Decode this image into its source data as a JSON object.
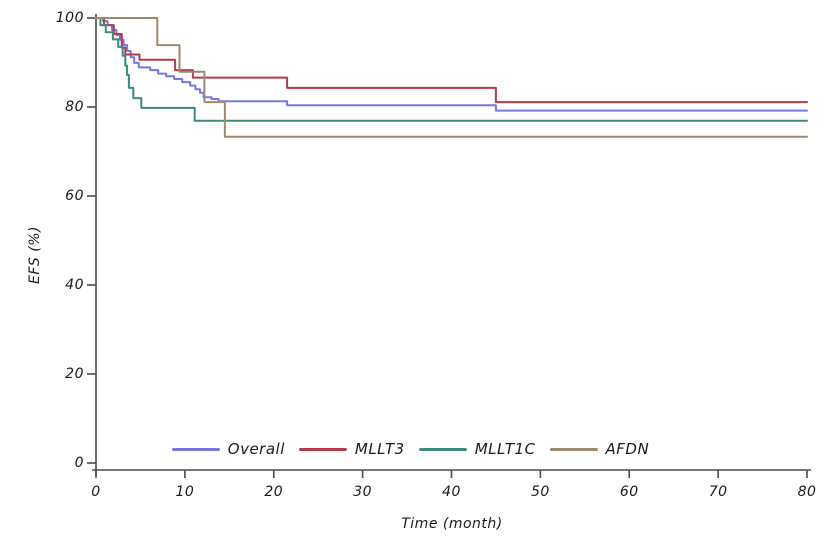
{
  "chart_data": {
    "type": "line",
    "subtype": "kaplan-meier-step",
    "title": "",
    "xlabel": "Time (month)",
    "ylabel": "EFS (%)",
    "xlim": [
      0,
      80
    ],
    "ylim": [
      0,
      100
    ],
    "xticks": [
      0,
      10,
      20,
      30,
      40,
      50,
      60,
      70,
      80
    ],
    "yticks": [
      0,
      20,
      40,
      60,
      80,
      100
    ],
    "grid": false,
    "legend_position": "bottom-center",
    "axis_color": "#4a4a4a",
    "series": [
      {
        "name": "Overall",
        "color": "#7577dd",
        "points": [
          [
            0,
            100
          ],
          [
            0.8,
            99.3
          ],
          [
            1.3,
            98.4
          ],
          [
            1.8,
            97.3
          ],
          [
            2.3,
            96.2
          ],
          [
            2.7,
            95.1
          ],
          [
            3.1,
            93.9
          ],
          [
            3.5,
            92.6
          ],
          [
            3.9,
            91.2
          ],
          [
            4.3,
            89.9
          ],
          [
            4.8,
            88.9
          ],
          [
            6.1,
            88.3
          ],
          [
            7,
            87.5
          ],
          [
            7.9,
            86.9
          ],
          [
            8.8,
            86.3
          ],
          [
            9.7,
            85.6
          ],
          [
            10.6,
            84.8
          ],
          [
            11.2,
            84
          ],
          [
            11.7,
            83.2
          ],
          [
            12.1,
            82.2
          ],
          [
            13,
            81.8
          ],
          [
            13.8,
            81.3
          ],
          [
            21.5,
            80.4
          ],
          [
            45,
            79.2
          ],
          [
            80,
            79.2
          ]
        ]
      },
      {
        "name": "MLLT3",
        "color": "#b23a4d",
        "points": [
          [
            0,
            100
          ],
          [
            0.9,
            98.4
          ],
          [
            2,
            96.4
          ],
          [
            2.9,
            93.3
          ],
          [
            3.3,
            91.8
          ],
          [
            4.9,
            90.6
          ],
          [
            8.9,
            88.3
          ],
          [
            10.9,
            86.6
          ],
          [
            21.5,
            84.3
          ],
          [
            45,
            81.1
          ],
          [
            80,
            81.1
          ]
        ]
      },
      {
        "name": "MLLT1C",
        "color": "#3b8a7e",
        "points": [
          [
            0,
            100
          ],
          [
            0.5,
            98.4
          ],
          [
            1.1,
            96.8
          ],
          [
            1.9,
            95.2
          ],
          [
            2.5,
            93.5
          ],
          [
            3,
            91.5
          ],
          [
            3.3,
            89.3
          ],
          [
            3.5,
            87.2
          ],
          [
            3.7,
            84.3
          ],
          [
            4.2,
            82
          ],
          [
            5.1,
            79.8
          ],
          [
            11.1,
            76.9
          ],
          [
            80,
            76.9
          ]
        ]
      },
      {
        "name": "AFDN",
        "color": "#9c8a6e",
        "points": [
          [
            0,
            100
          ],
          [
            6.9,
            93.9
          ],
          [
            9.4,
            87.9
          ],
          [
            12.2,
            81.1
          ],
          [
            14.5,
            73.3
          ],
          [
            80,
            73.3
          ]
        ]
      }
    ]
  }
}
